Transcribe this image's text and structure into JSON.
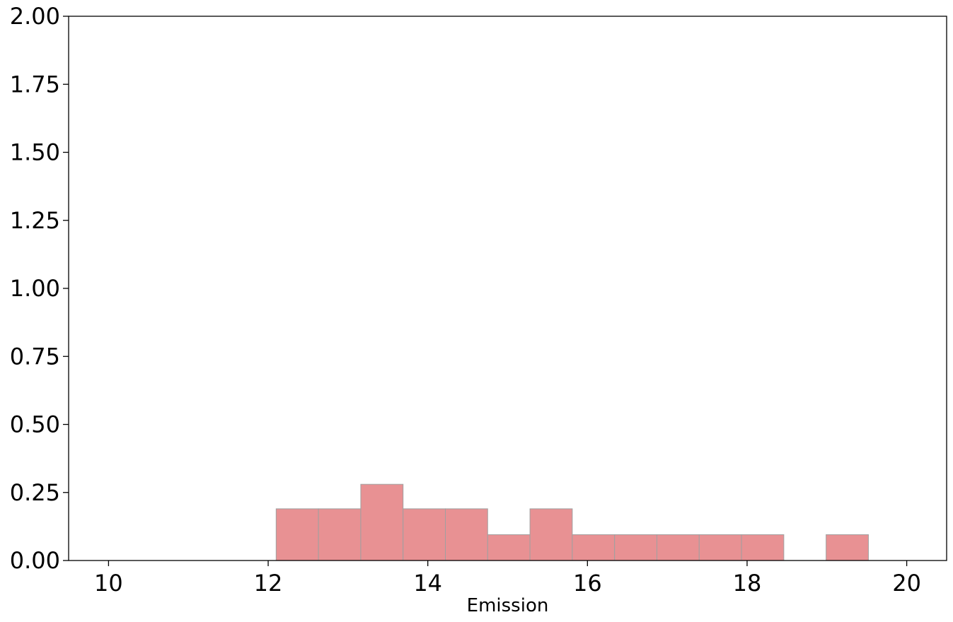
{
  "chart_data": {
    "type": "bar",
    "subtype": "histogram",
    "xlabel": "Emission",
    "ylabel": "",
    "xlim": [
      9.5,
      20.5
    ],
    "ylim": [
      0,
      2.0
    ],
    "x_ticks": [
      "10",
      "12",
      "14",
      "16",
      "18",
      "20"
    ],
    "y_ticks": [
      "0.00",
      "0.25",
      "0.50",
      "0.75",
      "1.00",
      "1.25",
      "1.50",
      "1.75",
      "2.00"
    ],
    "bin_edges": [
      12.1,
      12.63,
      13.16,
      13.69,
      14.22,
      14.75,
      15.28,
      15.81,
      16.34,
      16.87,
      17.4,
      17.93,
      18.46,
      18.99,
      19.52
    ],
    "values": [
      0.19,
      0.19,
      0.28,
      0.19,
      0.19,
      0.095,
      0.19,
      0.095,
      0.095,
      0.095,
      0.095,
      0.095,
      0,
      0.095
    ],
    "grid": false,
    "colors": {
      "bar_fill": "#e89193",
      "bar_edge": "#a0a0a0"
    }
  }
}
